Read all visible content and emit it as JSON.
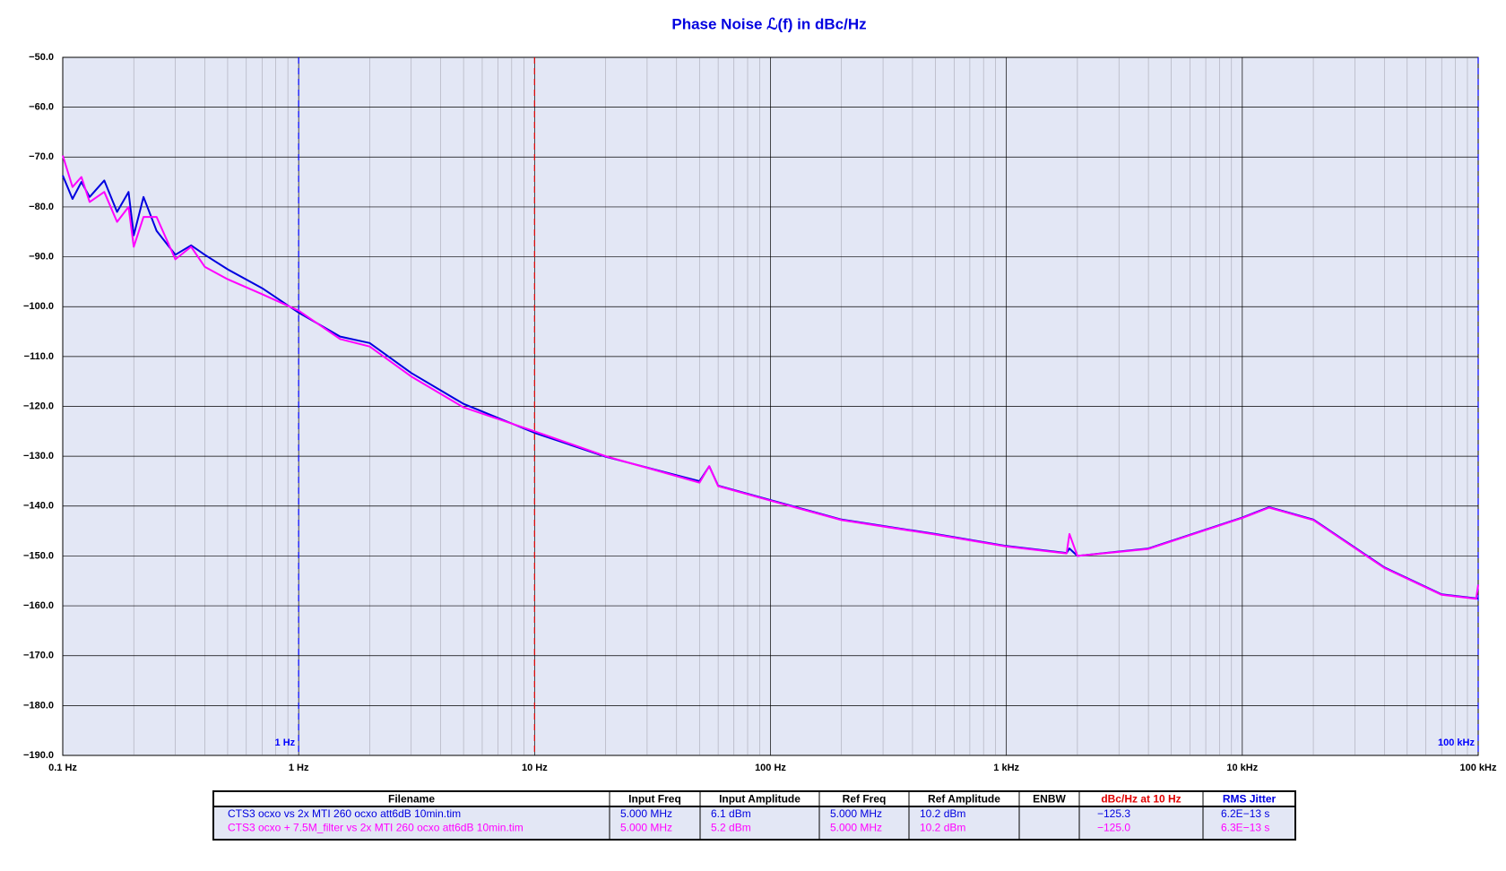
{
  "chart_data": {
    "type": "line",
    "title": "Phase Noise ℒ(f) in dBc/Hz",
    "xscale": "log",
    "grid": true,
    "x": [
      0.1,
      0.11,
      0.12,
      0.13,
      0.15,
      0.17,
      0.19,
      0.2,
      0.22,
      0.25,
      0.3,
      0.35,
      0.4,
      0.5,
      0.7,
      1,
      1.5,
      2,
      3,
      5,
      10,
      20,
      50,
      55,
      60,
      100,
      200,
      500,
      1000,
      1800,
      1850,
      2000,
      4000,
      10000,
      13000,
      20000,
      40000,
      70000,
      98000,
      100000
    ],
    "series": [
      {
        "name": "CTS3 ocxo vs 2x MTI 260 ocxo att6dB 10min.tim",
        "color": "#0000e0",
        "values": [
          -73.7,
          -78.4,
          -75,
          -78,
          -74.7,
          -81,
          -77,
          -85.7,
          -78,
          -84.8,
          -89.6,
          -87.7,
          -89.6,
          -92.5,
          -96.3,
          -101.2,
          -106,
          -107.3,
          -113.3,
          -119.5,
          -125.3,
          -130.1,
          -135,
          -132,
          -135.9,
          -138.8,
          -142.7,
          -145.6,
          -148,
          -149.4,
          -148.5,
          -150,
          -148.5,
          -142.3,
          -140.2,
          -142.7,
          -152.3,
          -157.7,
          -158.5,
          -158.5
        ]
      },
      {
        "name": "CTS3 ocxo + 7.5M_filter vs 2x MTI 260 ocxo att6dB 10min.tim",
        "color": "#ff00ff",
        "values": [
          -69.7,
          -76,
          -74,
          -79,
          -77,
          -83,
          -80,
          -88,
          -82,
          -82,
          -90.5,
          -88,
          -92,
          -94.5,
          -97.5,
          -100.8,
          -106.5,
          -108,
          -114,
          -120.2,
          -125,
          -130,
          -135.3,
          -132,
          -136,
          -138.9,
          -142.8,
          -145.7,
          -148.1,
          -149.5,
          -145.6,
          -150,
          -148.6,
          -142.4,
          -140.3,
          -142.8,
          -152.4,
          -157.8,
          -158.6,
          -155.8
        ]
      }
    ],
    "xlim": [
      0.1,
      100000
    ],
    "xticks": [
      {
        "value": 0.1,
        "label": "0.1 Hz"
      },
      {
        "value": 1,
        "label": "1 Hz"
      },
      {
        "value": 10,
        "label": "10 Hz"
      },
      {
        "value": 100,
        "label": "100 Hz"
      },
      {
        "value": 1000,
        "label": "1 kHz"
      },
      {
        "value": 10000,
        "label": "10 kHz"
      },
      {
        "value": 100000,
        "label": "100 kHz"
      }
    ],
    "ylim": [
      -190,
      -50
    ],
    "yticks": [
      {
        "value": -50,
        "label": "−50.0"
      },
      {
        "value": -60,
        "label": "−60.0"
      },
      {
        "value": -70,
        "label": "−70.0"
      },
      {
        "value": -80,
        "label": "−80.0"
      },
      {
        "value": -90,
        "label": "−90.0"
      },
      {
        "value": -100,
        "label": "−100.0"
      },
      {
        "value": -110,
        "label": "−110.0"
      },
      {
        "value": -120,
        "label": "−120.0"
      },
      {
        "value": -130,
        "label": "−130.0"
      },
      {
        "value": -140,
        "label": "−140.0"
      },
      {
        "value": -150,
        "label": "−150.0"
      },
      {
        "value": -160,
        "label": "−160.0"
      },
      {
        "value": -170,
        "label": "−170.0"
      },
      {
        "value": -180,
        "label": "−180.0"
      },
      {
        "value": -190,
        "label": "−190.0"
      }
    ],
    "markers": [
      {
        "x": 1,
        "label": "1 Hz",
        "color": "#0000ff"
      },
      {
        "x": 10,
        "color": "#e00000"
      },
      {
        "x": 100000,
        "label": "100 kHz",
        "color": "#0000ff"
      }
    ]
  },
  "table": {
    "header": [
      "Filename",
      "Input Freq",
      "Input Amplitude",
      "Ref Freq",
      "Ref Amplitude",
      "ENBW",
      "dBc/Hz at 10 Hz",
      "RMS Jitter"
    ],
    "header_colors": [
      "#000000",
      "#000000",
      "#000000",
      "#000000",
      "#000000",
      "#000000",
      "#e00000",
      "#0000e0"
    ],
    "rows": [
      [
        "5.000 MHz",
        "6.1 dBm",
        "5.000 MHz",
        "10.2 dBm",
        null,
        "−125.3",
        "6.2E−13 s"
      ],
      [
        "5.000 MHz",
        "5.2 dBm",
        "5.000 MHz",
        "10.2 dBm",
        null,
        "−125.0",
        "6.3E−13 s"
      ]
    ]
  }
}
